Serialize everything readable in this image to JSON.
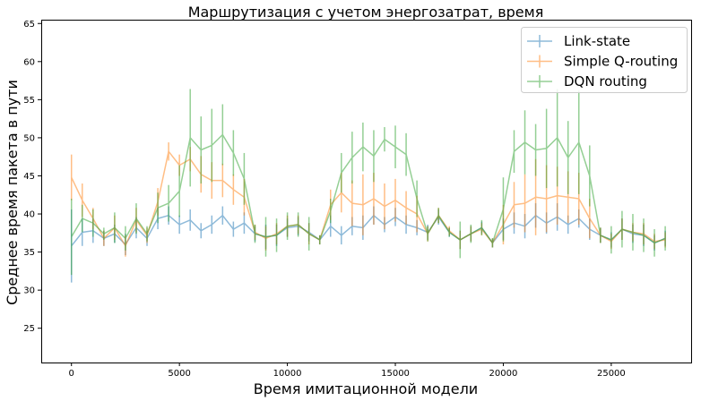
{
  "chart_data": {
    "type": "line",
    "title": "Маршрутизация с учетом энергозатрат, время",
    "xlabel": "Время имитационной модели",
    "ylabel": "Среднее время пакета в пути",
    "xlim": [
      -1400,
      28700
    ],
    "ylim": [
      20.5,
      65.5
    ],
    "xticks": [
      0,
      5000,
      10000,
      15000,
      20000,
      25000
    ],
    "yticks": [
      25,
      30,
      35,
      40,
      45,
      50,
      55,
      60,
      65
    ],
    "grid": false,
    "legend_position": "top-right",
    "x": [
      0,
      500,
      1000,
      1500,
      2000,
      2500,
      3000,
      3500,
      4000,
      4500,
      5000,
      5500,
      6000,
      6500,
      7000,
      7500,
      8000,
      8500,
      9000,
      9500,
      10000,
      10500,
      11000,
      11500,
      12000,
      12500,
      13000,
      13500,
      14000,
      14500,
      15000,
      15500,
      16000,
      16500,
      17000,
      17500,
      18000,
      18500,
      19000,
      19500,
      20000,
      20500,
      21000,
      21500,
      22000,
      22500,
      23000,
      23500,
      24000,
      24500,
      25000,
      25500,
      26000,
      26500,
      27000,
      27500
    ],
    "series": [
      {
        "name": "Link-state",
        "color": "#1f77b4",
        "values": [
          35.8,
          37.6,
          37.8,
          36.8,
          37.4,
          36.0,
          38.2,
          36.8,
          39.4,
          39.8,
          38.6,
          39.2,
          37.8,
          38.6,
          39.8,
          38.0,
          38.8,
          37.4,
          37.0,
          37.2,
          38.2,
          38.4,
          37.6,
          36.6,
          38.4,
          37.2,
          38.4,
          38.2,
          39.8,
          38.6,
          39.6,
          38.6,
          38.2,
          37.6,
          39.6,
          37.6,
          36.6,
          37.4,
          38.2,
          36.2,
          38.0,
          38.8,
          38.4,
          39.8,
          38.8,
          39.6,
          38.6,
          39.4,
          38.0,
          37.2,
          36.6,
          38.0,
          37.4,
          37.2,
          36.2,
          36.8
        ],
        "errors": [
          4.8,
          1.8,
          1.6,
          1.0,
          1.2,
          1.4,
          1.4,
          1.0,
          1.4,
          1.2,
          1.2,
          1.4,
          1.0,
          1.2,
          1.2,
          1.0,
          1.4,
          1.0,
          1.6,
          1.4,
          1.2,
          1.2,
          1.2,
          0.6,
          1.4,
          1.2,
          1.2,
          1.6,
          1.2,
          1.0,
          1.2,
          1.2,
          1.0,
          1.0,
          1.0,
          0.6,
          1.2,
          1.0,
          0.8,
          0.6,
          1.4,
          1.4,
          1.6,
          1.6,
          1.4,
          1.8,
          1.2,
          1.2,
          1.4,
          1.0,
          1.0,
          1.4,
          1.2,
          1.4,
          1.0,
          1.0
        ]
      },
      {
        "name": "Simple Q-routing",
        "color": "#ff7f0e",
        "values": [
          44.8,
          41.8,
          39.4,
          36.8,
          38.2,
          35.8,
          39.2,
          37.2,
          41.6,
          48.2,
          46.4,
          47.2,
          45.2,
          44.4,
          44.4,
          43.2,
          42.2,
          37.6,
          36.8,
          37.4,
          38.4,
          38.6,
          37.4,
          36.6,
          41.2,
          42.8,
          41.4,
          41.2,
          42.0,
          41.0,
          41.8,
          40.8,
          40.0,
          37.4,
          39.8,
          37.8,
          36.6,
          37.4,
          38.0,
          36.2,
          38.6,
          41.2,
          41.4,
          42.2,
          42.0,
          42.4,
          42.2,
          42.0,
          39.4,
          37.2,
          36.4,
          38.0,
          37.6,
          37.4,
          36.4,
          36.6
        ],
        "errors": [
          3.0,
          2.2,
          1.4,
          1.0,
          1.6,
          1.4,
          1.6,
          1.0,
          1.8,
          1.2,
          1.4,
          1.6,
          2.4,
          2.4,
          2.2,
          2.0,
          2.4,
          1.0,
          1.6,
          1.4,
          1.4,
          1.2,
          1.4,
          0.6,
          2.0,
          2.6,
          3.0,
          4.0,
          3.4,
          3.0,
          2.8,
          2.2,
          2.4,
          1.0,
          1.0,
          0.6,
          1.2,
          1.0,
          0.8,
          0.6,
          2.6,
          3.0,
          3.8,
          5.0,
          4.4,
          3.8,
          3.4,
          3.4,
          2.6,
          1.0,
          1.0,
          1.4,
          1.2,
          1.4,
          1.0,
          1.0
        ]
      },
      {
        "name": "DQN routing",
        "color": "#2ca02c",
        "values": [
          37.0,
          39.4,
          38.8,
          37.4,
          38.2,
          36.8,
          39.4,
          37.4,
          40.8,
          41.4,
          43.0,
          50.0,
          48.4,
          49.0,
          50.4,
          48.0,
          44.6,
          37.4,
          37.0,
          37.2,
          38.4,
          38.6,
          37.4,
          36.6,
          40.4,
          45.4,
          47.4,
          48.8,
          47.6,
          49.8,
          48.8,
          47.8,
          42.0,
          37.4,
          39.8,
          37.6,
          36.6,
          37.4,
          38.2,
          36.2,
          40.6,
          48.2,
          49.4,
          48.4,
          48.6,
          50.0,
          47.4,
          49.4,
          45.0,
          37.2,
          36.6,
          38.0,
          37.6,
          37.2,
          36.2,
          36.8
        ],
        "errors": [
          5.0,
          1.8,
          1.8,
          0.8,
          2.0,
          1.6,
          2.0,
          1.0,
          2.0,
          2.4,
          3.4,
          6.4,
          4.4,
          4.8,
          4.0,
          3.0,
          3.4,
          1.2,
          2.6,
          2.2,
          1.8,
          1.6,
          2.2,
          0.6,
          1.6,
          2.6,
          3.4,
          3.2,
          3.4,
          1.6,
          2.8,
          2.8,
          2.4,
          1.0,
          1.0,
          0.6,
          2.4,
          1.2,
          1.0,
          0.6,
          4.2,
          2.8,
          4.2,
          3.4,
          5.2,
          6.4,
          4.8,
          6.8,
          4.0,
          1.0,
          1.8,
          2.4,
          2.4,
          2.2,
          1.8,
          1.6
        ]
      }
    ]
  }
}
